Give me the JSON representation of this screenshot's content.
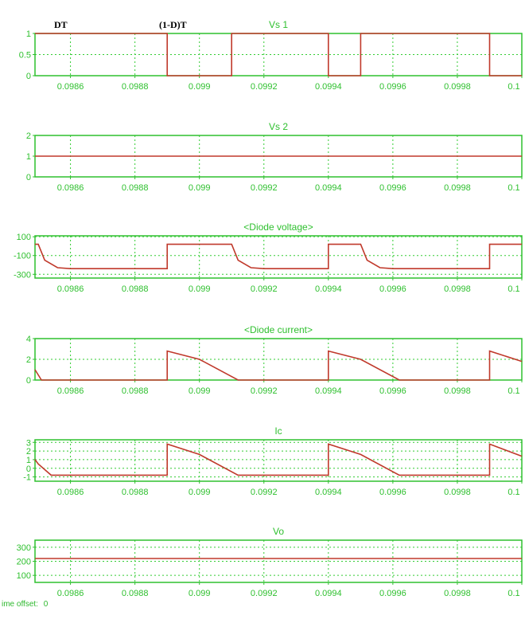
{
  "annotations": {
    "dt_label": "DT",
    "off_label": "(1-D)T"
  },
  "footer": {
    "label": "ime offset:",
    "value": "0"
  },
  "colors": {
    "axis": "#2fc02f",
    "trace": "#c0392b",
    "grid": "#33cc33"
  },
  "x_ticks": [
    "0.0986",
    "0.0988",
    "0.099",
    "0.0992",
    "0.0994",
    "0.0996",
    "0.0998",
    "0.1"
  ],
  "chart_data": [
    {
      "type": "line",
      "title": "Vs 1",
      "ylim": [
        0,
        1
      ],
      "yticks": [
        0,
        0.5,
        1
      ],
      "ytick_labels": [
        "0",
        "0.5",
        "1"
      ],
      "xlim": [
        0.09849,
        0.1
      ],
      "series": [
        {
          "x": [
            0.09849,
            0.0989,
            0.0989,
            0.0991,
            0.0991,
            0.0994,
            0.0994,
            0.0995,
            0.0995,
            0.0999,
            0.0999,
            0.1
          ],
          "y": [
            1,
            1,
            0,
            0,
            1,
            1,
            0,
            0,
            1,
            1,
            0,
            0
          ]
        }
      ]
    },
    {
      "type": "line",
      "title": "Vs 2",
      "ylim": [
        0,
        2
      ],
      "yticks": [
        0,
        1,
        2
      ],
      "ytick_labels": [
        "0",
        "1",
        "2"
      ],
      "xlim": [
        0.09849,
        0.1
      ],
      "series": [
        {
          "x": [
            0.09849,
            0.1
          ],
          "y": [
            1,
            1
          ]
        }
      ]
    },
    {
      "type": "line",
      "title": "<Diode voltage>",
      "ylim": [
        -340,
        110
      ],
      "yticks": [
        100,
        -100,
        -300
      ],
      "ytick_labels": [
        "100",
        "-100",
        "-300"
      ],
      "xlim": [
        0.09849,
        0.1
      ],
      "series": [
        {
          "x": [
            0.09849,
            0.0985,
            0.09852,
            0.09856,
            0.0986,
            0.0989,
            0.0989,
            0.0991,
            0.09912,
            0.09916,
            0.0992,
            0.0994,
            0.0994,
            0.0995,
            0.09952,
            0.09956,
            0.0996,
            0.0999,
            0.0999,
            0.1
          ],
          "y": [
            20,
            20,
            -150,
            -230,
            -240,
            -240,
            20,
            20,
            -150,
            -230,
            -240,
            -240,
            20,
            20,
            -150,
            -230,
            -240,
            -240,
            20,
            20
          ]
        }
      ]
    },
    {
      "type": "line",
      "title": "<Diode current>",
      "ylim": [
        0,
        4
      ],
      "yticks": [
        0,
        2,
        4
      ],
      "ytick_labels": [
        "0",
        "2",
        "4"
      ],
      "xlim": [
        0.09849,
        0.1
      ],
      "series": [
        {
          "x": [
            0.09849,
            0.09851,
            0.0989,
            0.0989,
            0.099,
            0.09912,
            0.0994,
            0.0994,
            0.0995,
            0.09962,
            0.0999,
            0.0999,
            0.1
          ],
          "y": [
            1.0,
            0,
            0,
            2.8,
            2.0,
            0,
            0,
            2.8,
            2.0,
            0,
            0,
            2.8,
            1.8
          ]
        }
      ]
    },
    {
      "type": "line",
      "title": "Ic",
      "ylim": [
        -1.5,
        3.3
      ],
      "yticks": [
        3,
        2,
        1,
        0,
        -1
      ],
      "ytick_labels": [
        "3",
        "2",
        "1",
        "0",
        "-1"
      ],
      "xlim": [
        0.09849,
        0.1
      ],
      "series": [
        {
          "x": [
            0.09849,
            0.0985,
            0.09854,
            0.0989,
            0.0989,
            0.099,
            0.09912,
            0.09916,
            0.0994,
            0.0994,
            0.0995,
            0.09962,
            0.09966,
            0.0999,
            0.0999,
            0.1
          ],
          "y": [
            1.0,
            0.5,
            -0.8,
            -0.8,
            2.8,
            1.6,
            -0.8,
            -0.8,
            -0.8,
            2.8,
            1.6,
            -0.8,
            -0.8,
            -0.8,
            2.8,
            1.4
          ]
        }
      ]
    },
    {
      "type": "line",
      "title": "Vo",
      "ylim": [
        50,
        350
      ],
      "yticks": [
        300,
        200,
        100
      ],
      "ytick_labels": [
        "300",
        "200",
        "100"
      ],
      "xlim": [
        0.09849,
        0.1
      ],
      "series": [
        {
          "x": [
            0.09849,
            0.1
          ],
          "y": [
            220,
            220
          ]
        }
      ]
    }
  ]
}
